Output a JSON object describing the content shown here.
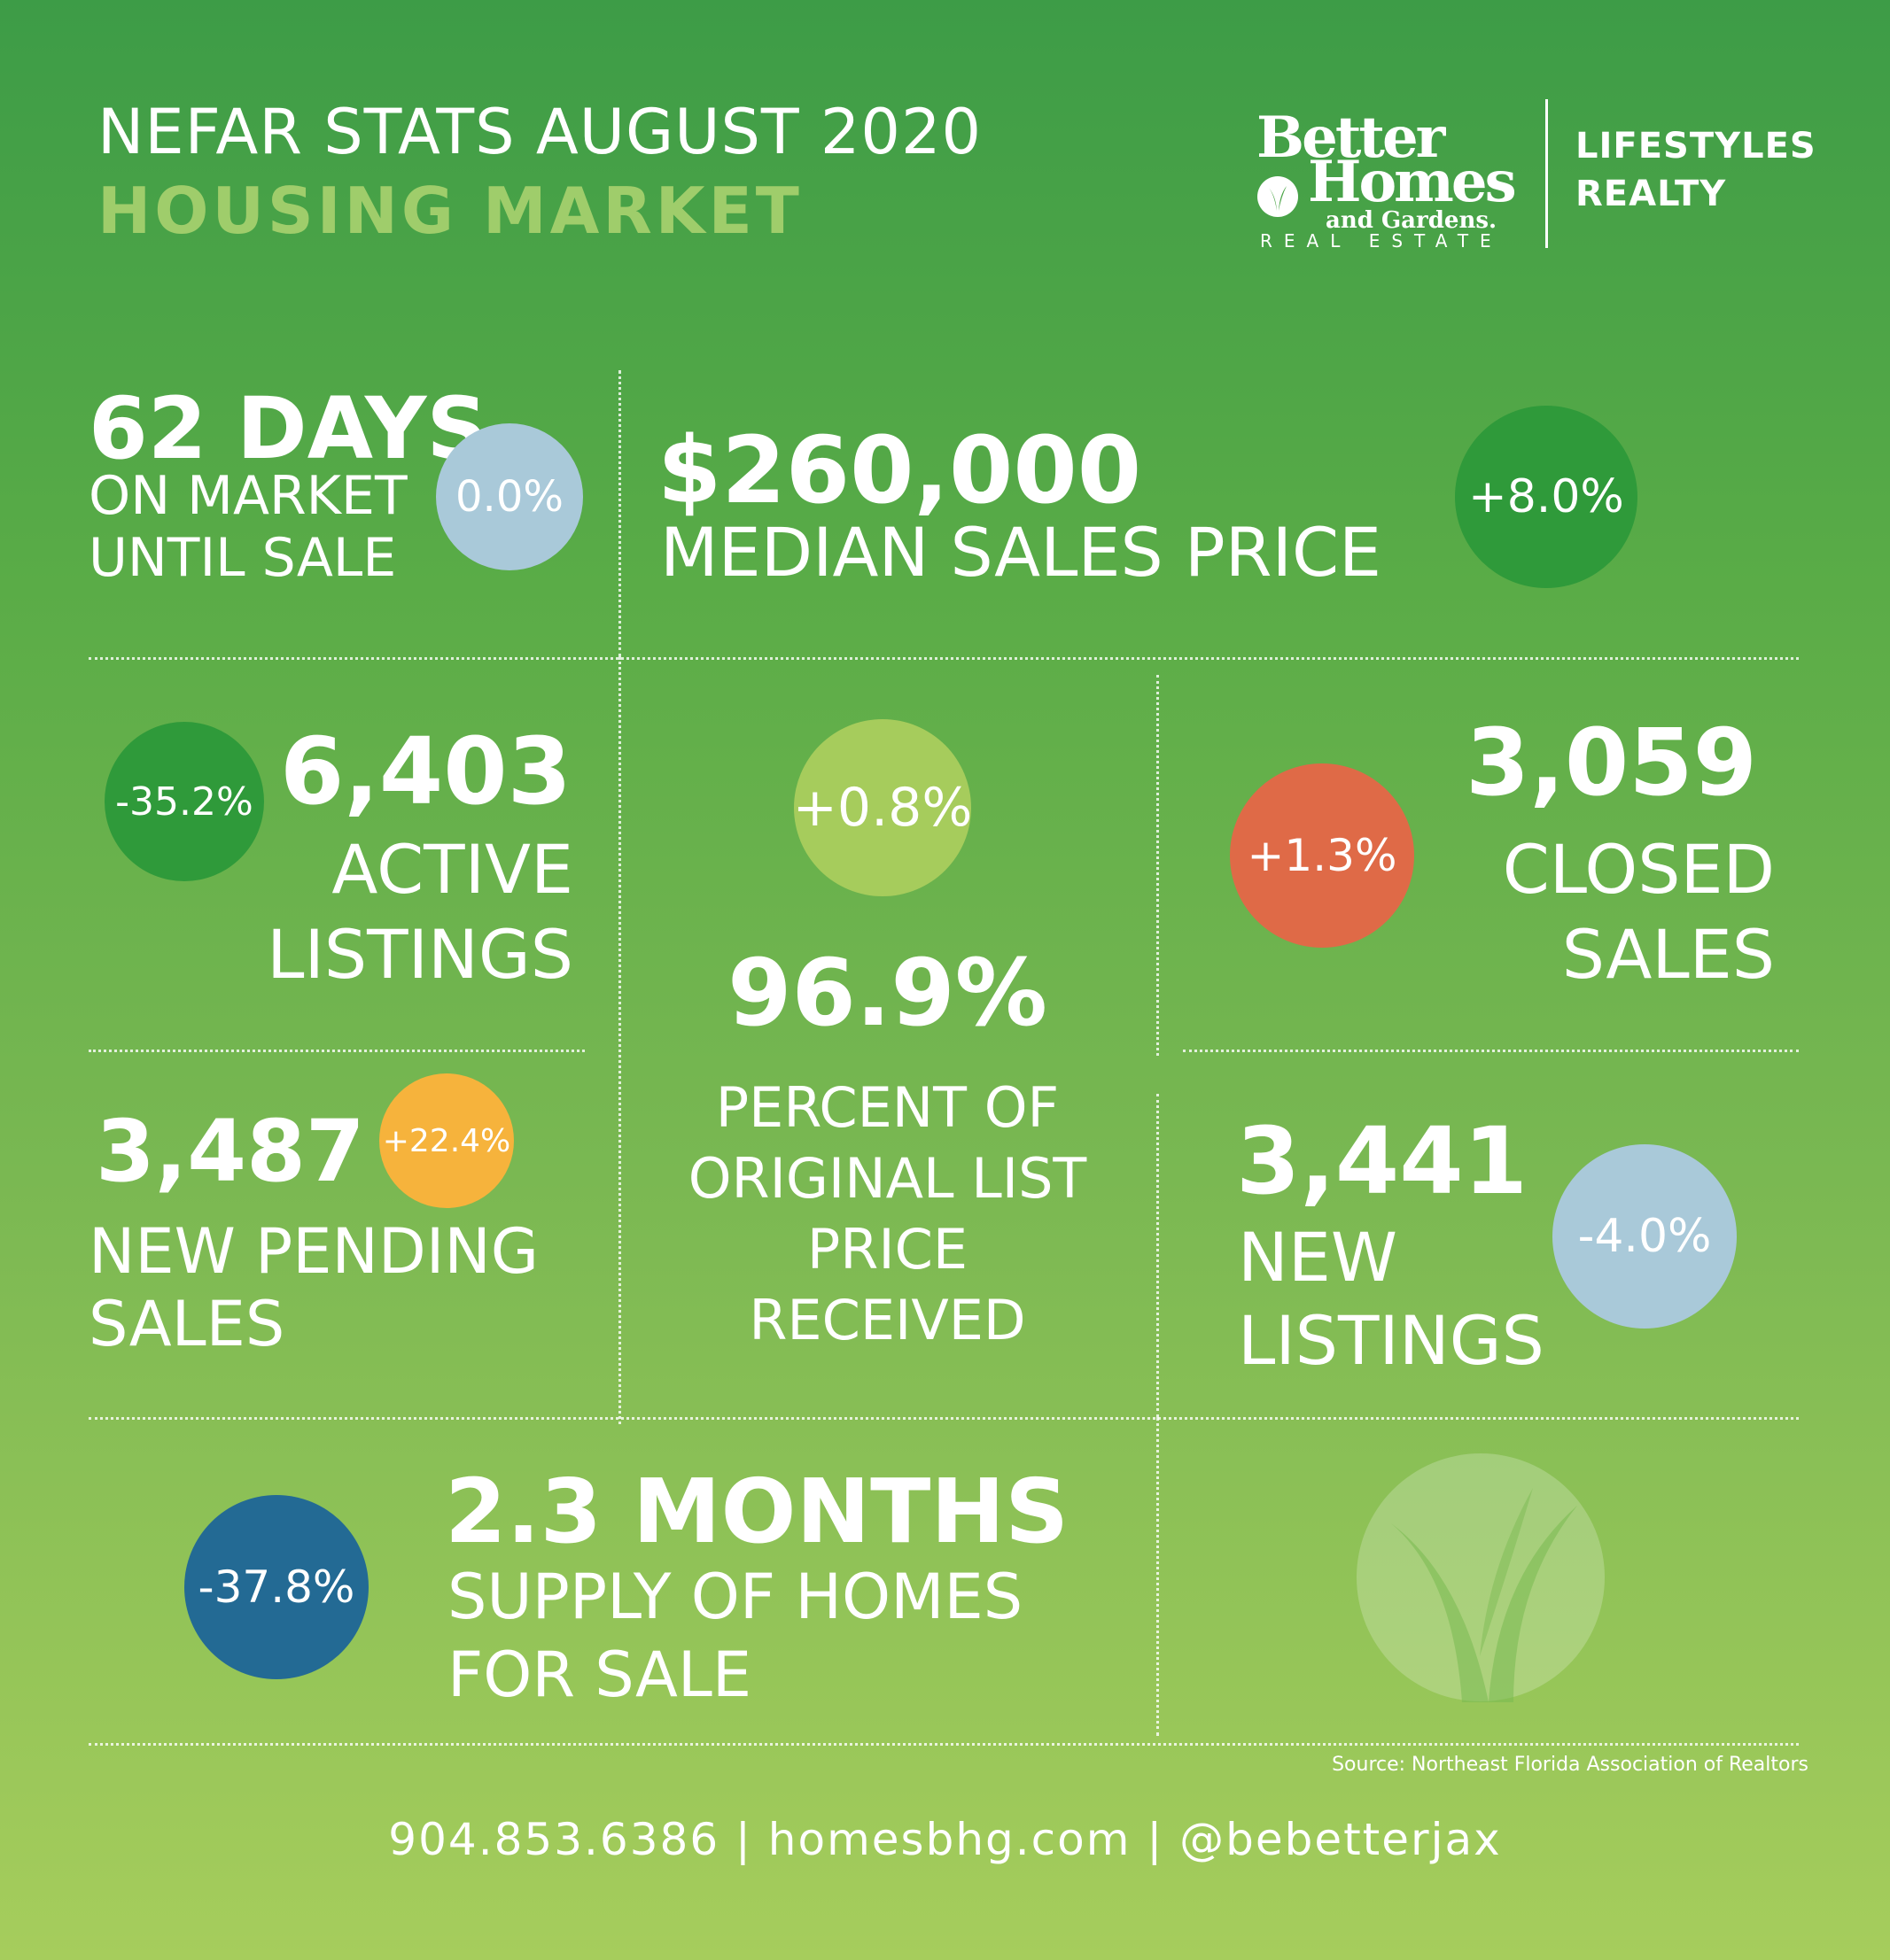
{
  "header": {
    "title_line1": "NEFAR STATS  AUGUST 2020",
    "title_line2": "HOUSING MARKET"
  },
  "logo": {
    "better": "Better",
    "homes": "Homes",
    "and_gardens": "and Gardens.",
    "real_estate": "REAL ESTATE",
    "brand_line1": "LIFESTYLES",
    "brand_line2": "REALTY",
    "icon": "leaf-icon"
  },
  "stats": {
    "days_on_market": {
      "value": "62 DAYS",
      "label_line1": "ON  MARKET",
      "label_line2": "UNTIL SALE",
      "change": "0.0%",
      "change_color": "#a9c9d9"
    },
    "median_price": {
      "value": "$260,000",
      "label": "MEDIAN SALES PRICE",
      "change": "+8.0%",
      "change_color": "#2f9a3a"
    },
    "active_listings": {
      "value": "6,403",
      "label_line1": "ACTIVE",
      "label_line2": "LISTINGS",
      "change": "-35.2%",
      "change_color": "#2f9a3a"
    },
    "pct_list_price": {
      "value": "96.9%",
      "label_line1": "PERCENT OF",
      "label_line2": "ORIGINAL LIST",
      "label_line3": "PRICE",
      "label_line4": "RECEIVED",
      "change": "+0.8%",
      "change_color": "#a6cc5c"
    },
    "closed_sales": {
      "value": "3,059",
      "label_line1": "CLOSED",
      "label_line2": "SALES",
      "change": "+1.3%",
      "change_color": "#df6a47"
    },
    "new_pending": {
      "value": "3,487",
      "label_line1": "NEW PENDING",
      "label_line2": "SALES",
      "change": "+22.4%",
      "change_color": "#f6b33c"
    },
    "new_listings": {
      "value": "3,441",
      "label_line1": "NEW",
      "label_line2": "LISTINGS",
      "change": "-4.0%",
      "change_color": "#a9c9d9"
    },
    "months_supply": {
      "value": "2.3 MONTHS",
      "label_line1": "SUPPLY OF HOMES",
      "label_line2": "FOR SALE",
      "change": "-37.8%",
      "change_color": "#236a94"
    }
  },
  "watermark_icon": "leaf-emblem-icon",
  "source": "Source: Northeast Florida Association of Realtors",
  "footer": "904.853.6386 | homesbhg.com | @bebetterjax"
}
